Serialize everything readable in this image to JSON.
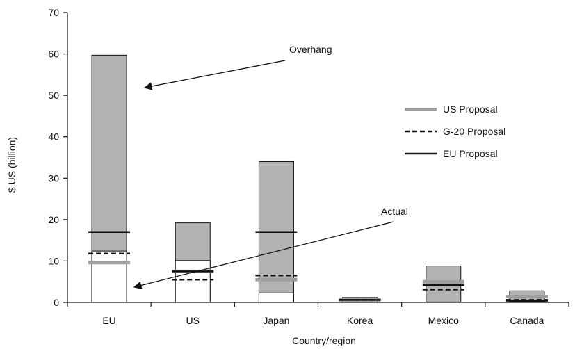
{
  "chart_data": {
    "type": "bar",
    "title": "",
    "xlabel": "Country/region",
    "ylabel": "$ US (billion)",
    "ylim": [
      0,
      70
    ],
    "yticks": [
      0,
      10,
      20,
      30,
      40,
      50,
      60,
      70
    ],
    "grid": false,
    "categories": [
      "EU",
      "US",
      "Japan",
      "Korea",
      "Mexico",
      "Canada"
    ],
    "series": [
      {
        "role": "total",
        "color": "#b3b3b5",
        "values": [
          59.7,
          19.2,
          34.0,
          1.2,
          8.8,
          2.8
        ]
      },
      {
        "role": "actual",
        "color": "#ffffff",
        "values": [
          12.4,
          10.1,
          2.3,
          0.3,
          0.1,
          0.2
        ]
      }
    ],
    "proposals": [
      {
        "name": "US Proposal",
        "style": "gray",
        "color": "#9e9e9e",
        "values": [
          9.6,
          7.5,
          5.5,
          0.6,
          5.0,
          1.4
        ]
      },
      {
        "name": "G-20 Proposal",
        "style": "dashed",
        "color": "#111111",
        "values": [
          11.8,
          5.5,
          6.5,
          0.6,
          3.1,
          0.6
        ]
      },
      {
        "name": "EU Proposal",
        "style": "black",
        "color": "#111111",
        "values": [
          17.0,
          7.5,
          17.0,
          0.6,
          4.2,
          0.4
        ]
      }
    ],
    "annotations": [
      {
        "text": "Overhang",
        "points_to": {
          "category": "EU",
          "value": 52
        }
      },
      {
        "text": "Actual",
        "points_to": {
          "category": "EU",
          "value": 3.5
        }
      }
    ],
    "legend": {
      "placement": "right"
    }
  }
}
